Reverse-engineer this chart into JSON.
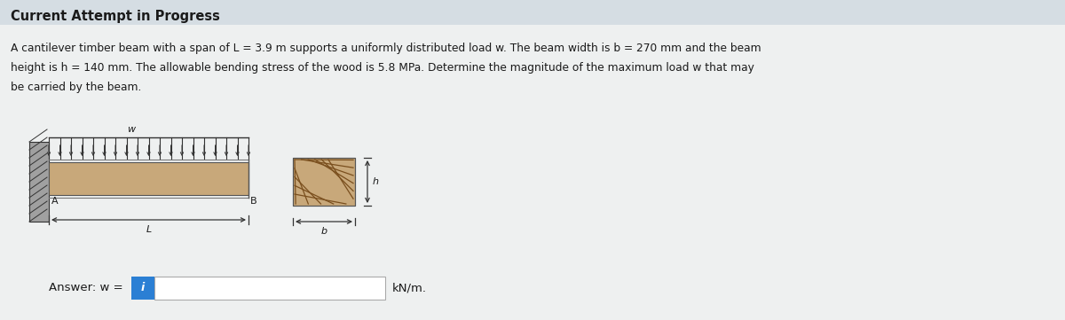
{
  "title": "Current Attempt in Progress",
  "title_fontsize": 10.5,
  "title_fontweight": "bold",
  "body_line1": "A cantilever timber beam with a span of L = 3.9 m supports a uniformly distributed load w. The beam width is b = 270 mm and the beam",
  "body_line2": "height is h = 140 mm. The allowable bending stress of the wood is 5.8 MPa. Determine the magnitude of the maximum load w that may",
  "body_line3": "be carried by the beam.",
  "body_fontsize": 8.8,
  "answer_text": "Answer: w =",
  "unit_text": "kN/m.",
  "bg_color": "#dce3e8",
  "beam_fill": "#c8a87a",
  "wall_fill": "#b0b0b0",
  "info_btn_color": "#2b7fd4",
  "white": "#ffffff",
  "dark": "#333333",
  "dim_line_color": "#555555",
  "arrow_color": "#333333"
}
